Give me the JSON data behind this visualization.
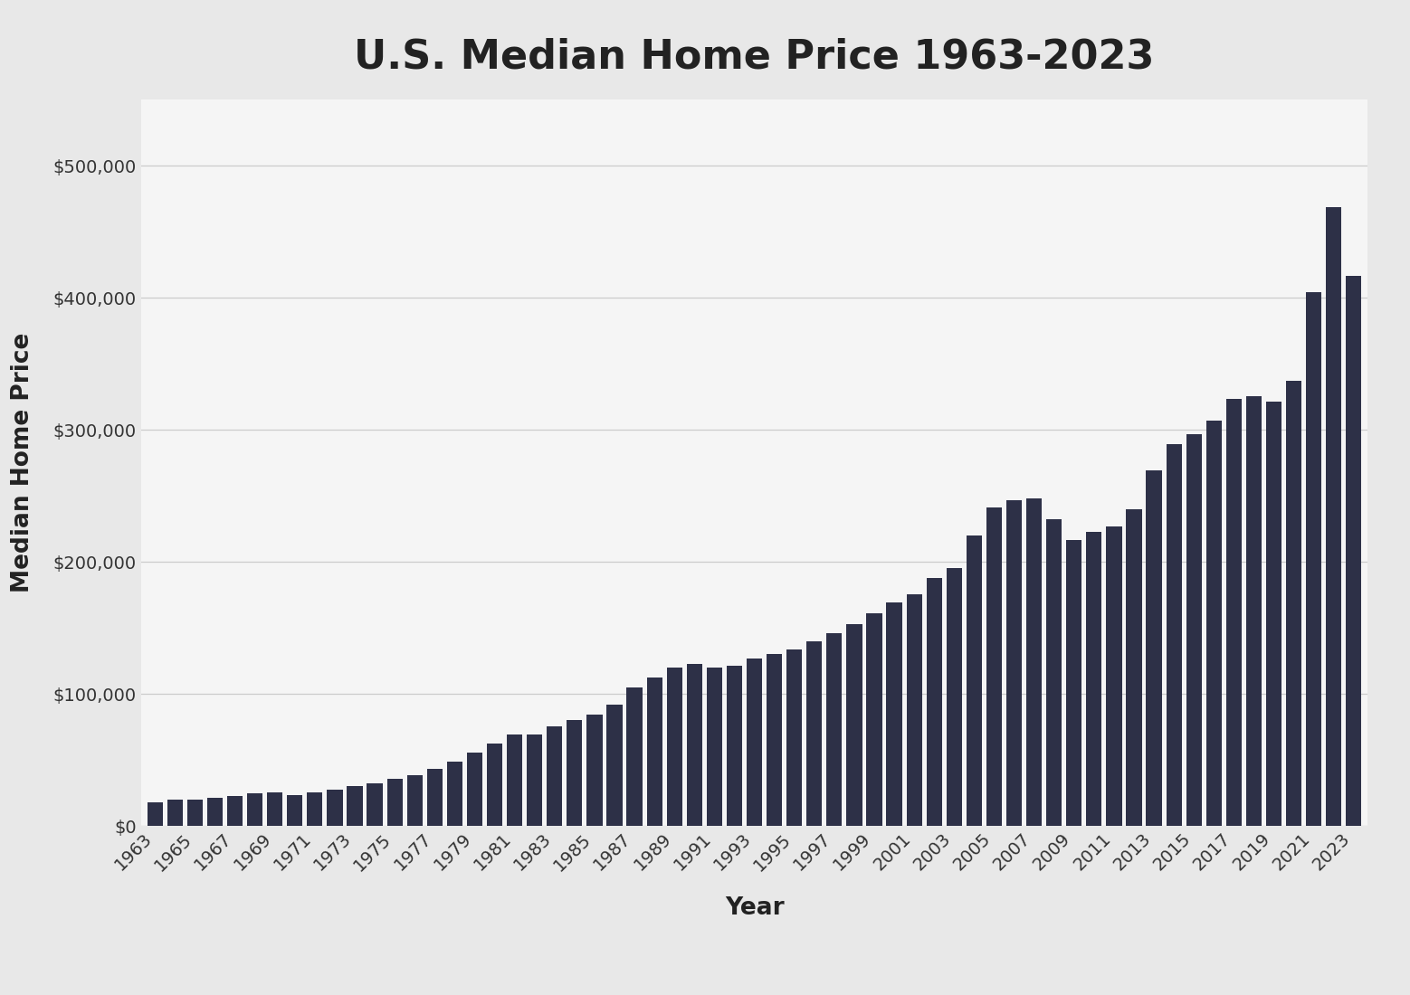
{
  "title": "U.S. Median Home Price 1963-2023",
  "xlabel": "Year",
  "ylabel": "Median Home Price",
  "outer_background_color": "#e8e8e8",
  "plot_background_color": "#f5f5f5",
  "bar_color": "#2d3047",
  "years": [
    1963,
    1964,
    1965,
    1966,
    1967,
    1968,
    1969,
    1970,
    1971,
    1972,
    1973,
    1974,
    1975,
    1976,
    1977,
    1978,
    1979,
    1980,
    1981,
    1982,
    1983,
    1984,
    1985,
    1986,
    1987,
    1988,
    1989,
    1990,
    1991,
    1992,
    1993,
    1994,
    1995,
    1996,
    1997,
    1998,
    1999,
    2000,
    2001,
    2002,
    2003,
    2004,
    2005,
    2006,
    2007,
    2008,
    2009,
    2010,
    2011,
    2012,
    2013,
    2014,
    2015,
    2016,
    2017,
    2018,
    2019,
    2020,
    2021,
    2022,
    2023
  ],
  "prices": [
    18000,
    20000,
    20000,
    21500,
    22700,
    24800,
    25600,
    23400,
    25200,
    27600,
    29900,
    32000,
    35300,
    38100,
    42900,
    48700,
    55700,
    62200,
    68900,
    69300,
    75300,
    79900,
    84300,
    92000,
    104500,
    112500,
    120000,
    122900,
    120000,
    121500,
    126500,
    130000,
    133900,
    140000,
    146000,
    152500,
    161000,
    169000,
    175200,
    187600,
    195000,
    219600,
    240900,
    246500,
    247900,
    232100,
    216700,
    222900,
    226800,
    240000,
    268900,
    288900,
    296400,
    306700,
    323100,
    325600,
    321500,
    336900,
    403900,
    468400,
    416100
  ],
  "ylim": [
    0,
    550000
  ],
  "yticks": [
    0,
    100000,
    200000,
    300000,
    400000,
    500000
  ],
  "xtick_step": 2,
  "title_fontsize": 32,
  "axis_label_fontsize": 19,
  "tick_fontsize": 14,
  "grid_color": "#cccccc",
  "grid_linewidth": 0.9,
  "bar_width": 0.78
}
